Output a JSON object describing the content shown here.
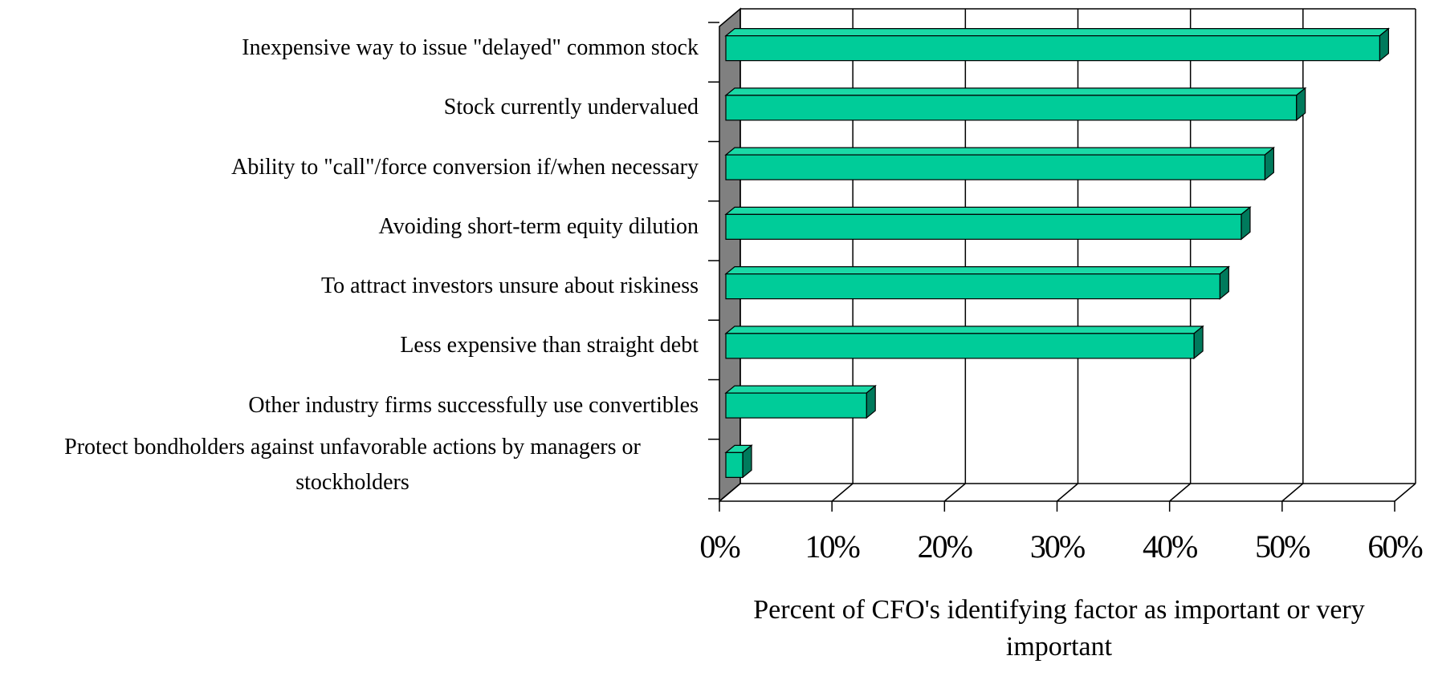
{
  "chart_data": {
    "type": "bar3d_horizontal",
    "x_label": "Percent of CFO's identifying factor as important or very important",
    "categories": [
      "Inexpensive way to issue \"delayed\" common stock",
      "Stock currently undervalued",
      "Ability to \"call\"/force conversion if/when necessary",
      "Avoiding short-term equity dilution",
      "To attract investors unsure about riskiness",
      "Less expensive than straight debt",
      "Other industry firms successfully use convertibles",
      "Protect bondholders against unfavorable actions by managers or stockholders"
    ],
    "values": [
      58.1,
      50.7,
      47.9,
      45.8,
      43.9,
      41.6,
      12.5,
      1.5
    ],
    "color": "#00cc99",
    "xlim": [
      0,
      60
    ],
    "xticks": [
      {
        "value": 0,
        "label": "0%"
      },
      {
        "value": 10,
        "label": "10%"
      },
      {
        "value": 20,
        "label": "20%"
      },
      {
        "value": 30,
        "label": "30%"
      },
      {
        "value": 40,
        "label": "40%"
      },
      {
        "value": 50,
        "label": "50%"
      },
      {
        "value": 60,
        "label": "60%"
      }
    ],
    "grid": true
  }
}
